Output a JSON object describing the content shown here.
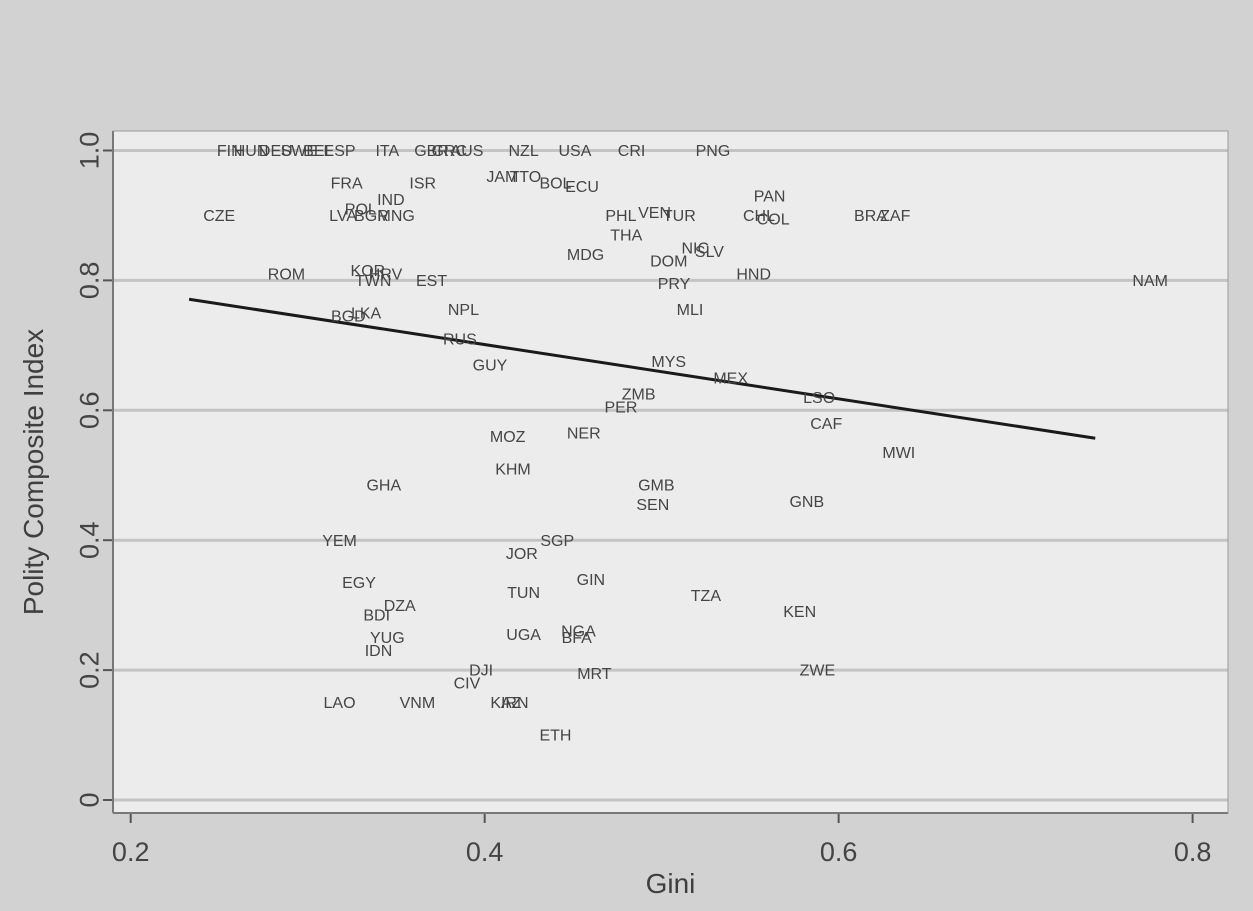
{
  "chart_data": {
    "type": "scatter",
    "title": "",
    "xlabel": "Gini",
    "ylabel": "Polity Composite Index",
    "xlim": [
      0.19,
      0.82
    ],
    "ylim": [
      -0.02,
      1.03
    ],
    "x_ticks": [
      0.2,
      0.4,
      0.6,
      0.8
    ],
    "x_tick_labels": [
      "0.2",
      "0.4",
      "0.6",
      "0.8"
    ],
    "y_ticks": [
      0,
      0.2,
      0.4,
      0.6,
      0.8,
      1.0
    ],
    "y_tick_labels": [
      "0",
      "0.2",
      "0.4",
      "0.6",
      "0.8",
      "1.0"
    ],
    "grid": "horizontal",
    "marker": "country-code labels",
    "colors": {
      "plot_bg": "#ececec",
      "outer_bg": "#d2d2d2",
      "grid": "#c4c4c4",
      "axis": "#555555",
      "fit_line": "#1a1a1a"
    },
    "fit_line": {
      "x": [
        0.233,
        0.745
      ],
      "y": [
        0.771,
        0.557
      ]
    },
    "points": [
      {
        "label": "FIN",
        "x": 0.256,
        "y": 1.0
      },
      {
        "label": "HUN",
        "x": 0.268,
        "y": 1.0
      },
      {
        "label": "DEU",
        "x": 0.282,
        "y": 1.0
      },
      {
        "label": "SWE",
        "x": 0.295,
        "y": 1.0
      },
      {
        "label": "BEL",
        "x": 0.306,
        "y": 1.0
      },
      {
        "label": "ESP",
        "x": 0.318,
        "y": 1.0
      },
      {
        "label": "ITA",
        "x": 0.345,
        "y": 1.0
      },
      {
        "label": "GBR",
        "x": 0.37,
        "y": 1.0
      },
      {
        "label": "GRC",
        "x": 0.38,
        "y": 1.0
      },
      {
        "label": "AUS",
        "x": 0.39,
        "y": 1.0
      },
      {
        "label": "NZL",
        "x": 0.422,
        "y": 1.0
      },
      {
        "label": "USA",
        "x": 0.451,
        "y": 1.0
      },
      {
        "label": "CRI",
        "x": 0.483,
        "y": 1.0
      },
      {
        "label": "PNG",
        "x": 0.529,
        "y": 1.0
      },
      {
        "label": "FRA",
        "x": 0.322,
        "y": 0.95
      },
      {
        "label": "ISR",
        "x": 0.365,
        "y": 0.95
      },
      {
        "label": "JAM",
        "x": 0.41,
        "y": 0.96
      },
      {
        "label": "TTO",
        "x": 0.423,
        "y": 0.96
      },
      {
        "label": "BOL",
        "x": 0.44,
        "y": 0.95
      },
      {
        "label": "ECU",
        "x": 0.455,
        "y": 0.945
      },
      {
        "label": "IND",
        "x": 0.347,
        "y": 0.925
      },
      {
        "label": "PAN",
        "x": 0.561,
        "y": 0.93
      },
      {
        "label": "CZE",
        "x": 0.25,
        "y": 0.9
      },
      {
        "label": "POL",
        "x": 0.33,
        "y": 0.91
      },
      {
        "label": "LVA",
        "x": 0.32,
        "y": 0.9
      },
      {
        "label": "BGR",
        "x": 0.336,
        "y": 0.9
      },
      {
        "label": "MNG",
        "x": 0.35,
        "y": 0.9
      },
      {
        "label": "PHL",
        "x": 0.477,
        "y": 0.9
      },
      {
        "label": "VEN",
        "x": 0.496,
        "y": 0.905
      },
      {
        "label": "TUR",
        "x": 0.51,
        "y": 0.9
      },
      {
        "label": "CHL",
        "x": 0.555,
        "y": 0.9
      },
      {
        "label": "COL",
        "x": 0.563,
        "y": 0.895
      },
      {
        "label": "BRA",
        "x": 0.618,
        "y": 0.9
      },
      {
        "label": "ZAF",
        "x": 0.632,
        "y": 0.9
      },
      {
        "label": "THA",
        "x": 0.48,
        "y": 0.87
      },
      {
        "label": "NIC",
        "x": 0.519,
        "y": 0.85
      },
      {
        "label": "SLV",
        "x": 0.527,
        "y": 0.845
      },
      {
        "label": "MDG",
        "x": 0.457,
        "y": 0.84
      },
      {
        "label": "DOM",
        "x": 0.504,
        "y": 0.83
      },
      {
        "label": "ROM",
        "x": 0.288,
        "y": 0.81
      },
      {
        "label": "KOR",
        "x": 0.334,
        "y": 0.815
      },
      {
        "label": "HRV",
        "x": 0.344,
        "y": 0.81
      },
      {
        "label": "TWN",
        "x": 0.337,
        "y": 0.8
      },
      {
        "label": "EST",
        "x": 0.37,
        "y": 0.8
      },
      {
        "label": "HND",
        "x": 0.552,
        "y": 0.81
      },
      {
        "label": "PRY",
        "x": 0.507,
        "y": 0.795
      },
      {
        "label": "NAM",
        "x": 0.776,
        "y": 0.8
      },
      {
        "label": "MLI",
        "x": 0.516,
        "y": 0.755
      },
      {
        "label": "NPL",
        "x": 0.388,
        "y": 0.755
      },
      {
        "label": "BGD",
        "x": 0.323,
        "y": 0.745
      },
      {
        "label": "LKA",
        "x": 0.333,
        "y": 0.75
      },
      {
        "label": "RUS",
        "x": 0.386,
        "y": 0.71
      },
      {
        "label": "GUY",
        "x": 0.403,
        "y": 0.67
      },
      {
        "label": "MYS",
        "x": 0.504,
        "y": 0.675
      },
      {
        "label": "MEX",
        "x": 0.539,
        "y": 0.65
      },
      {
        "label": "ZMB",
        "x": 0.487,
        "y": 0.625
      },
      {
        "label": "LSO",
        "x": 0.589,
        "y": 0.62
      },
      {
        "label": "PER",
        "x": 0.477,
        "y": 0.605
      },
      {
        "label": "CAF",
        "x": 0.593,
        "y": 0.58
      },
      {
        "label": "NER",
        "x": 0.456,
        "y": 0.565
      },
      {
        "label": "MOZ",
        "x": 0.413,
        "y": 0.56
      },
      {
        "label": "MWI",
        "x": 0.634,
        "y": 0.535
      },
      {
        "label": "KHM",
        "x": 0.416,
        "y": 0.51
      },
      {
        "label": "GHA",
        "x": 0.343,
        "y": 0.485
      },
      {
        "label": "GMB",
        "x": 0.497,
        "y": 0.485
      },
      {
        "label": "GNB",
        "x": 0.582,
        "y": 0.46
      },
      {
        "label": "SEN",
        "x": 0.495,
        "y": 0.455
      },
      {
        "label": "YEM",
        "x": 0.318,
        "y": 0.4
      },
      {
        "label": "SGP",
        "x": 0.441,
        "y": 0.4
      },
      {
        "label": "JOR",
        "x": 0.421,
        "y": 0.38
      },
      {
        "label": "EGY",
        "x": 0.329,
        "y": 0.335
      },
      {
        "label": "GIN",
        "x": 0.46,
        "y": 0.34
      },
      {
        "label": "TUN",
        "x": 0.422,
        "y": 0.32
      },
      {
        "label": "TZA",
        "x": 0.525,
        "y": 0.315
      },
      {
        "label": "DZA",
        "x": 0.352,
        "y": 0.3
      },
      {
        "label": "BDI",
        "x": 0.339,
        "y": 0.285
      },
      {
        "label": "KEN",
        "x": 0.578,
        "y": 0.29
      },
      {
        "label": "NGA",
        "x": 0.453,
        "y": 0.26
      },
      {
        "label": "BFA",
        "x": 0.452,
        "y": 0.25
      },
      {
        "label": "UGA",
        "x": 0.422,
        "y": 0.255
      },
      {
        "label": "YUG",
        "x": 0.345,
        "y": 0.25
      },
      {
        "label": "IDN",
        "x": 0.34,
        "y": 0.23
      },
      {
        "label": "DJI",
        "x": 0.398,
        "y": 0.2
      },
      {
        "label": "MRT",
        "x": 0.462,
        "y": 0.195
      },
      {
        "label": "ZWE",
        "x": 0.588,
        "y": 0.2
      },
      {
        "label": "CIV",
        "x": 0.39,
        "y": 0.18
      },
      {
        "label": "LAO",
        "x": 0.318,
        "y": 0.15
      },
      {
        "label": "VNM",
        "x": 0.362,
        "y": 0.15
      },
      {
        "label": "KAZ",
        "x": 0.412,
        "y": 0.15
      },
      {
        "label": "IRN",
        "x": 0.417,
        "y": 0.15
      },
      {
        "label": "ETH",
        "x": 0.44,
        "y": 0.1
      }
    ]
  }
}
